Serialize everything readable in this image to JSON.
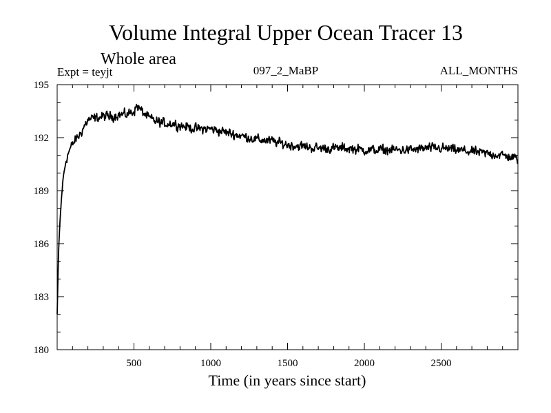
{
  "chart_data": {
    "type": "line",
    "title": "Volume Integral Upper Ocean Tracer 13",
    "subtitle": "Whole area",
    "annotations": {
      "left": "Expt = teyjt",
      "center": "097_2_MaBP",
      "right": "ALL_MONTHS"
    },
    "xlabel": "Time (in years since start)",
    "ylabel": "",
    "xlim": [
      0,
      3000
    ],
    "ylim": [
      180,
      195
    ],
    "x_ticks": [
      500,
      1000,
      1500,
      2000,
      2500
    ],
    "y_ticks": [
      180,
      183,
      186,
      189,
      192,
      195
    ],
    "grid": false,
    "line_color": "#000000",
    "series": [
      {
        "name": "tracer13",
        "x": [
          0,
          10,
          20,
          30,
          40,
          60,
          80,
          100,
          120,
          150,
          180,
          200,
          250,
          300,
          350,
          400,
          450,
          500,
          520,
          550,
          600,
          650,
          700,
          750,
          800,
          850,
          900,
          950,
          1000,
          1100,
          1200,
          1300,
          1400,
          1500,
          1600,
          1700,
          1800,
          1900,
          2000,
          2100,
          2200,
          2300,
          2400,
          2500,
          2600,
          2700,
          2800,
          2900,
          3000
        ],
        "values": [
          182.0,
          185.8,
          187.5,
          188.8,
          189.8,
          190.8,
          191.3,
          191.6,
          191.9,
          192.2,
          192.7,
          193.0,
          193.1,
          193.2,
          193.2,
          193.3,
          193.3,
          193.5,
          193.8,
          193.5,
          193.1,
          192.9,
          192.8,
          192.8,
          192.7,
          192.6,
          192.5,
          192.5,
          192.5,
          192.3,
          192.1,
          191.9,
          191.8,
          191.6,
          191.5,
          191.4,
          191.4,
          191.4,
          191.3,
          191.3,
          191.3,
          191.3,
          191.4,
          191.4,
          191.3,
          191.2,
          191.1,
          191.0,
          190.8
        ],
        "noise_amplitude": 0.3
      }
    ]
  }
}
